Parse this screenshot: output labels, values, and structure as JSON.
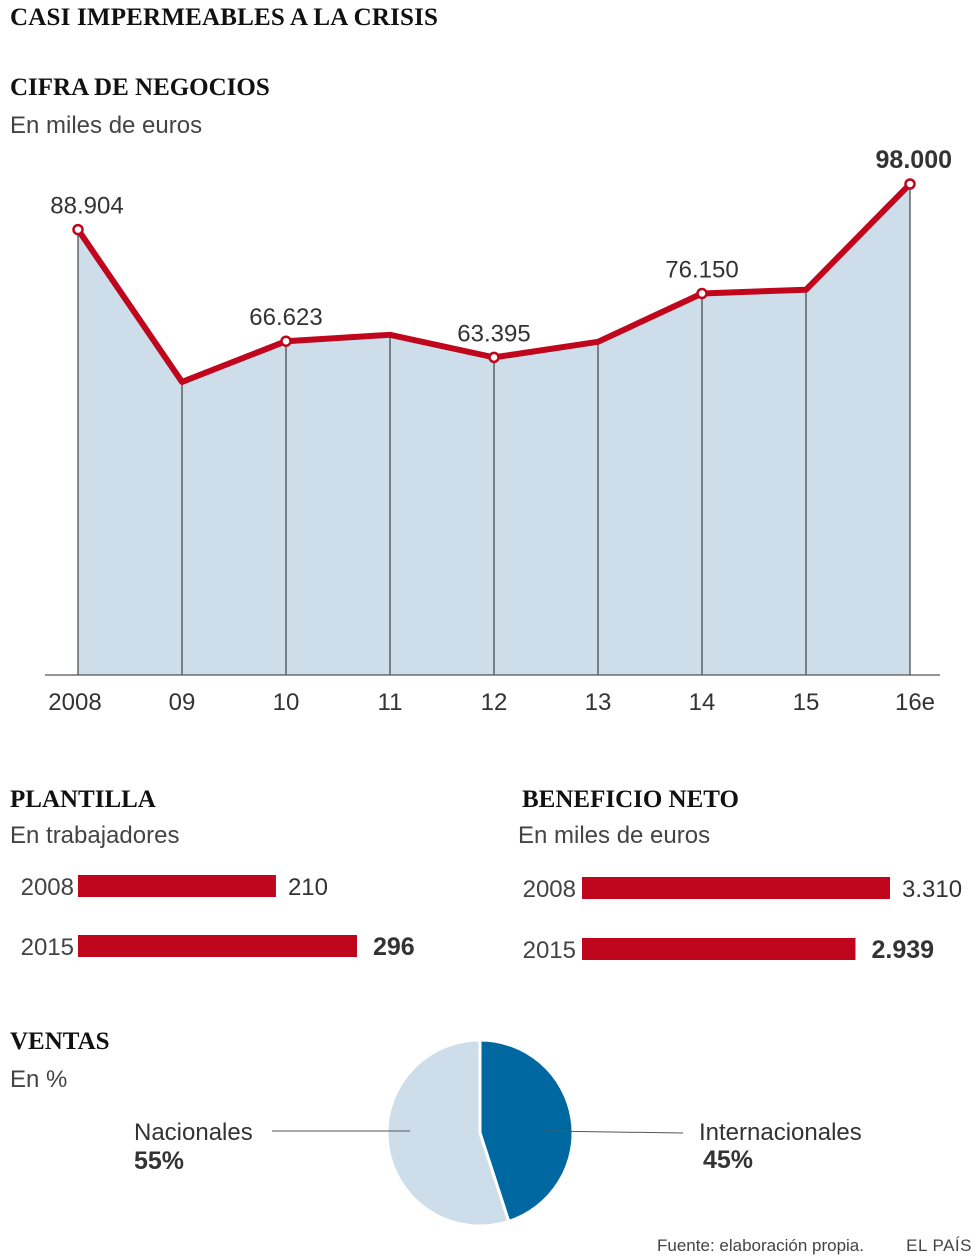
{
  "title": "CASI IMPERMEABLES A LA CRISIS",
  "colors": {
    "line": "#c0061c",
    "area": "#cddde9",
    "bar": "#c0061c",
    "pie_light": "#cddde9",
    "pie_dark": "#0068a0"
  },
  "chart_data": [
    {
      "type": "area",
      "title": "CIFRA DE NEGOCIOS",
      "subtitle": "En miles de euros",
      "categories": [
        "2008",
        "09",
        "10",
        "11",
        "12",
        "13",
        "14",
        "15",
        "16e"
      ],
      "values": [
        88904,
        58500,
        66623,
        67900,
        63395,
        66500,
        76150,
        76900,
        98000
      ],
      "labels": [
        "88.904",
        "",
        "66.623",
        "",
        "63.395",
        "",
        "76.150",
        "",
        "98.000"
      ],
      "markers": [
        true,
        false,
        true,
        false,
        true,
        false,
        true,
        false,
        true
      ],
      "ylim": [
        0,
        100000
      ]
    },
    {
      "type": "bar",
      "title": "PLANTILLA",
      "subtitle": "En trabajadores",
      "categories": [
        "2008",
        "2015"
      ],
      "values": [
        210,
        296
      ],
      "labels": [
        "210",
        "296"
      ],
      "xlim": [
        0,
        296
      ]
    },
    {
      "type": "bar",
      "title": "BENEFICIO NETO",
      "subtitle": "En miles de euros",
      "categories": [
        "2008",
        "2015"
      ],
      "values": [
        3310,
        2939
      ],
      "labels": [
        "3.310",
        "2.939"
      ],
      "xlim": [
        0,
        3310
      ]
    },
    {
      "type": "pie",
      "title": "VENTAS",
      "subtitle": "En %",
      "slices": [
        {
          "name": "Internacionales",
          "value": 45,
          "label": "45%"
        },
        {
          "name": "Nacionales",
          "value": 55,
          "label": "55%"
        }
      ]
    }
  ],
  "footer": {
    "source": "Fuente: elaboración propia.",
    "brand": "EL PAÍS"
  }
}
